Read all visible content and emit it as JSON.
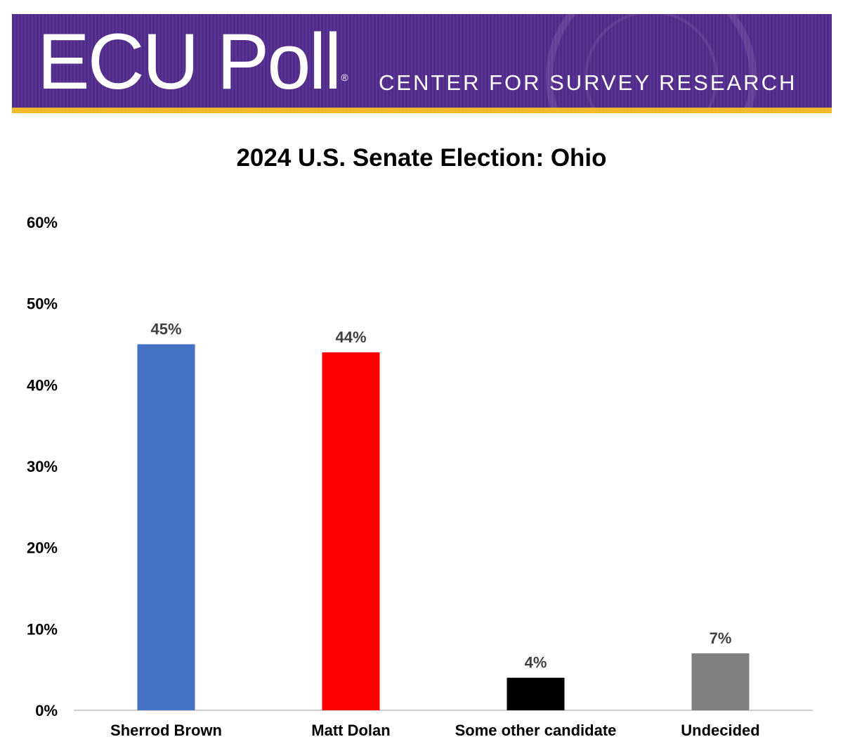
{
  "banner": {
    "logo_text": "ECU Poll",
    "trademark": "®",
    "tagline": "CENTER FOR SURVEY RESEARCH",
    "colors": {
      "purple": "#592a8a",
      "gold": "#f2b92d"
    }
  },
  "chart_data": {
    "type": "bar",
    "title": "2024 U.S. Senate Election: Ohio",
    "xlabel": "",
    "ylabel": "",
    "categories": [
      "Sherrod Brown",
      "Matt Dolan",
      "Some other candidate",
      "Undecided"
    ],
    "values": [
      45,
      44,
      4,
      7
    ],
    "data_labels": [
      "45%",
      "44%",
      "4%",
      "7%"
    ],
    "colors": [
      "#4472c4",
      "#ff0000",
      "#000000",
      "#808080"
    ],
    "ylim": [
      0,
      60
    ],
    "yticks": [
      0,
      10,
      20,
      30,
      40,
      50,
      60
    ],
    "ytick_labels": [
      "0%",
      "10%",
      "20%",
      "30%",
      "40%",
      "50%",
      "60%"
    ],
    "grid": false,
    "legend": "none"
  }
}
